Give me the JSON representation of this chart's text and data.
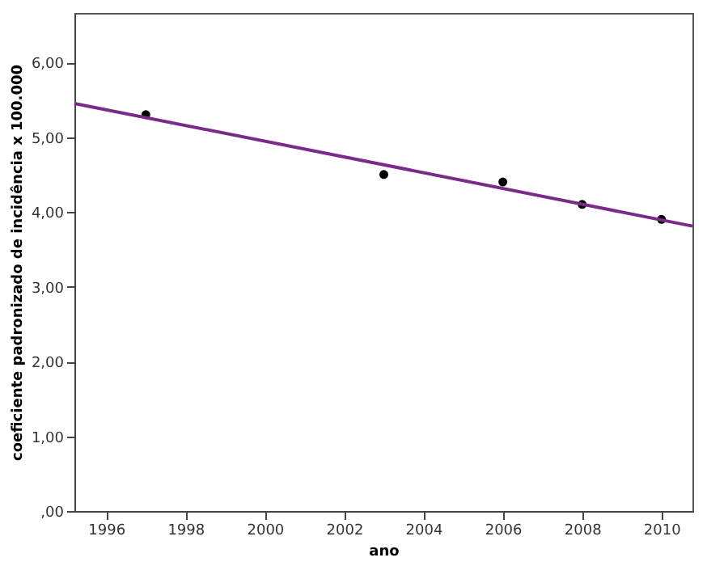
{
  "chart_data": {
    "type": "scatter",
    "xlabel": "ano",
    "ylabel": "coeficiente padronizado de incidência x 100.000",
    "xlim": [
      1995.2,
      2010.78
    ],
    "xticks": [
      1996,
      1998,
      2000,
      2002,
      2004,
      2006,
      2008,
      2010
    ],
    "ylim": [
      0,
      6.66
    ],
    "yticks": [
      {
        "value": 0,
        "label": ",00"
      },
      {
        "value": 1,
        "label": "1,00"
      },
      {
        "value": 2,
        "label": "2,00"
      },
      {
        "value": 3,
        "label": "3,00"
      },
      {
        "value": 4,
        "label": "4,00"
      },
      {
        "value": 5,
        "label": "5,00"
      },
      {
        "value": 6,
        "label": "6,00"
      }
    ],
    "grid": false,
    "series": [
      {
        "color": "#000000",
        "marker": "circle",
        "x": [
          1997,
          2003,
          2006,
          2008,
          2010
        ],
        "values": [
          5.3,
          4.5,
          4.4,
          4.1,
          3.9
        ]
      },
      {
        "type": "line",
        "color": "#7b2a8a",
        "marker": "none",
        "line_style": "solid",
        "x": [
          1995.2,
          2010.78
        ],
        "values": [
          5.45,
          3.81
        ]
      }
    ]
  }
}
